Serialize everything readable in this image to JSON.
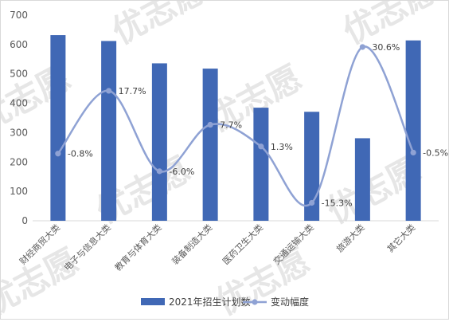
{
  "chart_data": {
    "type": "bar",
    "categories": [
      "财经商贸大类",
      "电子与信息大类",
      "教育与体育大类",
      "装备制造大类",
      "医药卫生大类",
      "交通运输大类",
      "旅游大类",
      "其它大类"
    ],
    "series": [
      {
        "name": "2021年招生计划数",
        "type": "bar",
        "values": [
          632,
          612,
          536,
          518,
          385,
          371,
          281,
          614
        ]
      },
      {
        "name": "变动幅度",
        "type": "line",
        "smooth": true,
        "values": [
          -0.8,
          17.7,
          -6.0,
          7.7,
          1.3,
          -15.3,
          30.6,
          -0.5
        ]
      }
    ],
    "data_labels": [
      "-0.8%",
      "17.7%",
      "-6.0%",
      "7.7%",
      "1.3%",
      "-15.3%",
      "30.6%",
      "-0.5%"
    ],
    "y_ticks": [
      "0",
      "100",
      "200",
      "300",
      "400",
      "500",
      "600",
      "700"
    ],
    "ylim": [
      0,
      700
    ],
    "legend_position": "bottom",
    "grid": false,
    "watermark": "优志愿",
    "colors": {
      "bar": "#4068b5",
      "line": "#8fa2d4"
    }
  }
}
